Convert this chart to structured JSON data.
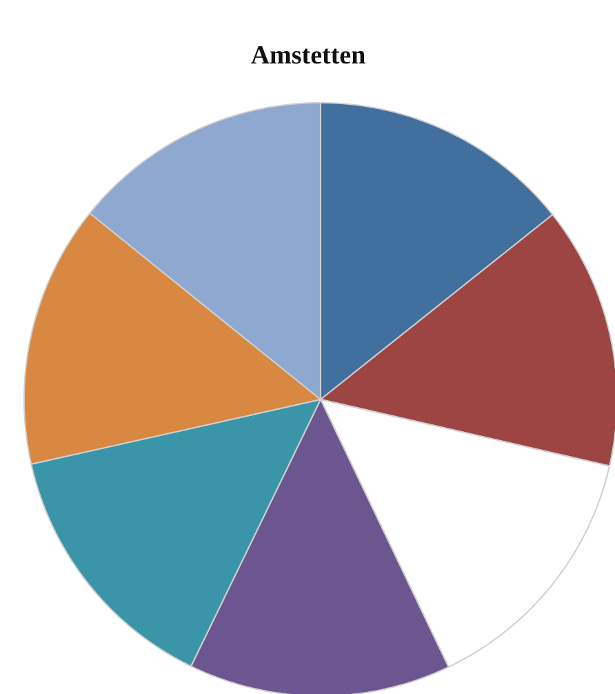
{
  "chart_data": {
    "type": "pie",
    "title": "Amstetten",
    "categories": [
      null,
      null,
      null,
      null,
      null,
      null,
      null
    ],
    "values": [
      14.3,
      14.3,
      14.3,
      14.3,
      14.3,
      14.3,
      14.2
    ],
    "colors": [
      "#41709f",
      "#9c4543",
      "#ffffff",
      "#6b5690",
      "#3b95a9",
      "#d98841",
      "#8ea8cf"
    ]
  }
}
